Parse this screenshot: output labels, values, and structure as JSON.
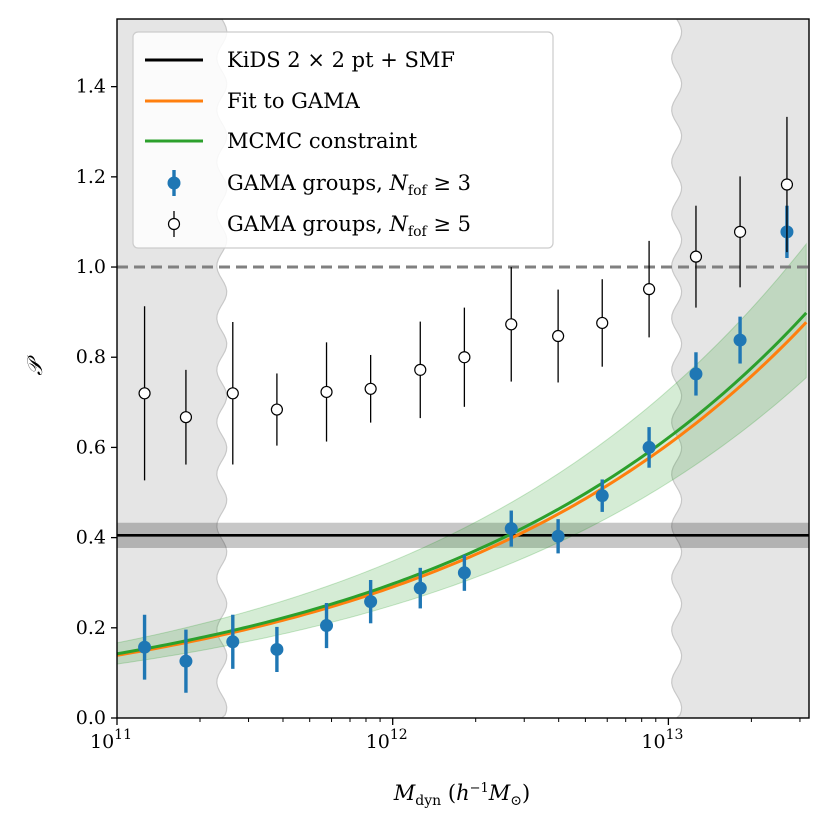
{
  "chart_data": {
    "type": "scatter",
    "xscale": "log",
    "xlim_log10": [
      11.0,
      13.51
    ],
    "ylim": [
      0.0,
      1.55
    ],
    "xlabel": "M_dyn (h^-1 M_⊙)",
    "ylabel": "𝒫",
    "x_ticks": [
      {
        "exp": 11,
        "text": "10",
        "sup": "11"
      },
      {
        "exp": 12,
        "text": "10",
        "sup": "12"
      },
      {
        "exp": 13,
        "text": "10",
        "sup": "13"
      }
    ],
    "y_ticks": [
      {
        "value": 0.0,
        "text": "0.0"
      },
      {
        "value": 0.2,
        "text": "0.2"
      },
      {
        "value": 0.4,
        "text": "0.4"
      },
      {
        "value": 0.6,
        "text": "0.6"
      },
      {
        "value": 0.8,
        "text": "0.8"
      },
      {
        "value": 1.0,
        "text": "1.0"
      },
      {
        "value": 1.2,
        "text": "1.2"
      },
      {
        "value": 1.4,
        "text": "1.4"
      }
    ],
    "shaded_mass_regions_log10": [
      [
        11.0,
        11.38
      ],
      [
        13.03,
        13.51
      ]
    ],
    "reference_line": {
      "y": 1.0,
      "style": "dashed",
      "color": "#808080"
    },
    "kids_constraint": {
      "y": 0.405,
      "band": [
        0.377,
        0.433
      ],
      "color": "#000000"
    },
    "fit_curve": {
      "a": 0.42,
      "b": 0.32,
      "pivot_log10": 12.5
    },
    "mcmc_curve": {
      "a": 0.43,
      "b": 0.32,
      "pivot_log10": 12.5,
      "band_low_scale": 0.84,
      "band_high_scale": 1.17
    },
    "series": [
      {
        "name": "GAMA groups, N_fof ≥ 3",
        "color": "#1f77b4",
        "marker": "filled",
        "x_log10": [
          11.1,
          11.25,
          11.42,
          11.58,
          11.76,
          11.92,
          12.1,
          12.26,
          12.43,
          12.6,
          12.76,
          12.93,
          13.1,
          13.26,
          13.43
        ],
        "y": [
          0.157,
          0.126,
          0.169,
          0.152,
          0.205,
          0.258,
          0.288,
          0.322,
          0.42,
          0.403,
          0.493,
          0.6,
          0.763,
          0.838,
          1.078
        ],
        "err_low": [
          0.072,
          0.07,
          0.06,
          0.05,
          0.05,
          0.048,
          0.045,
          0.04,
          0.04,
          0.038,
          0.036,
          0.045,
          0.048,
          0.052,
          0.058
        ],
        "err_high": [
          0.072,
          0.07,
          0.06,
          0.05,
          0.05,
          0.048,
          0.045,
          0.04,
          0.04,
          0.038,
          0.036,
          0.045,
          0.048,
          0.052,
          0.058
        ]
      },
      {
        "name": "GAMA groups, N_fof ≥ 5",
        "color": "#000000",
        "marker": "open",
        "x_log10": [
          11.1,
          11.25,
          11.42,
          11.58,
          11.76,
          11.92,
          12.1,
          12.26,
          12.43,
          12.6,
          12.76,
          12.93,
          13.1,
          13.26,
          13.43
        ],
        "y": [
          0.72,
          0.667,
          0.72,
          0.684,
          0.723,
          0.73,
          0.772,
          0.8,
          0.873,
          0.847,
          0.876,
          0.951,
          1.023,
          1.078,
          1.183
        ],
        "err_low": [
          0.193,
          0.105,
          0.158,
          0.08,
          0.11,
          0.075,
          0.107,
          0.11,
          0.127,
          0.103,
          0.097,
          0.107,
          0.113,
          0.123,
          0.15
        ],
        "err_high": [
          0.193,
          0.105,
          0.158,
          0.08,
          0.11,
          0.075,
          0.107,
          0.11,
          0.127,
          0.103,
          0.097,
          0.107,
          0.113,
          0.123,
          0.15
        ]
      }
    ],
    "legend": {
      "placement": "top-left",
      "entries": [
        {
          "kind": "line",
          "color": "#000000",
          "text": "KiDS 2 × 2 pt + SMF"
        },
        {
          "kind": "line",
          "color": "#ff7f0e",
          "text": "Fit to GAMA"
        },
        {
          "kind": "line",
          "color": "#2ca02c",
          "text": "MCMC constraint"
        },
        {
          "kind": "filled",
          "color": "#1f77b4",
          "text_main": "GAMA groups, N",
          "text_sub": "fof",
          "text_tail": " ≥ 3"
        },
        {
          "kind": "open",
          "color": "#000000",
          "text_main": "GAMA groups, N",
          "text_sub": "fof",
          "text_tail": " ≥ 5"
        }
      ]
    }
  }
}
